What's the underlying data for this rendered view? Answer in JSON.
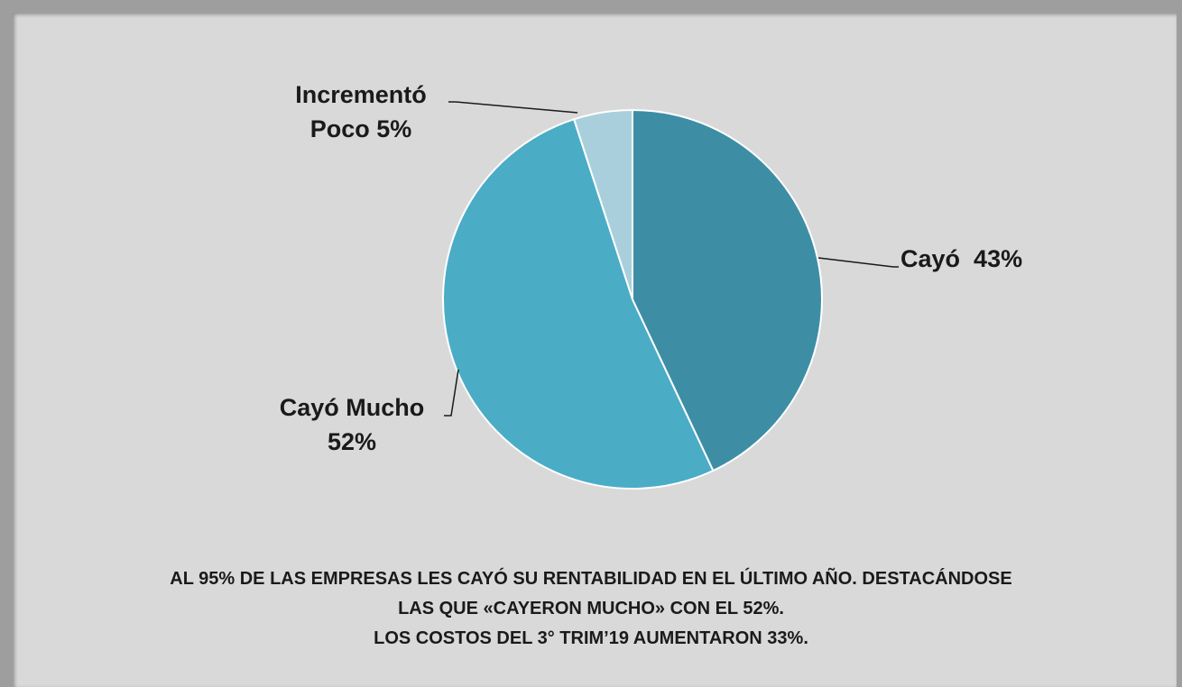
{
  "chart_data": {
    "type": "pie",
    "categories": [
      "Cayó",
      "Cayó Mucho",
      "Incrementó Poco"
    ],
    "values": [
      43,
      52,
      5
    ],
    "value_labels": [
      "43%",
      "52%",
      "5%"
    ],
    "colors": [
      "#3d8ea5",
      "#4bacc6",
      "#a9cfdd"
    ],
    "annotations": [
      "AL 95% DE LAS EMPRESAS LES CAYÓ SU RENTABILIDAD EN EL ÚLTIMO AÑO. DESTACÁNDOSE",
      "LAS QUE «CAYERON MUCHO» CON EL 52%.",
      "LOS COSTOS DEL  3° TRIM’19 AUMENTARON 33%."
    ]
  }
}
